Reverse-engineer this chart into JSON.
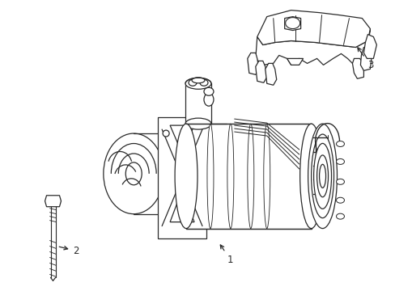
{
  "background_color": "#ffffff",
  "line_color": "#2a2a2a",
  "line_width": 0.9,
  "fig_w": 4.89,
  "fig_h": 3.6,
  "dpi": 100
}
